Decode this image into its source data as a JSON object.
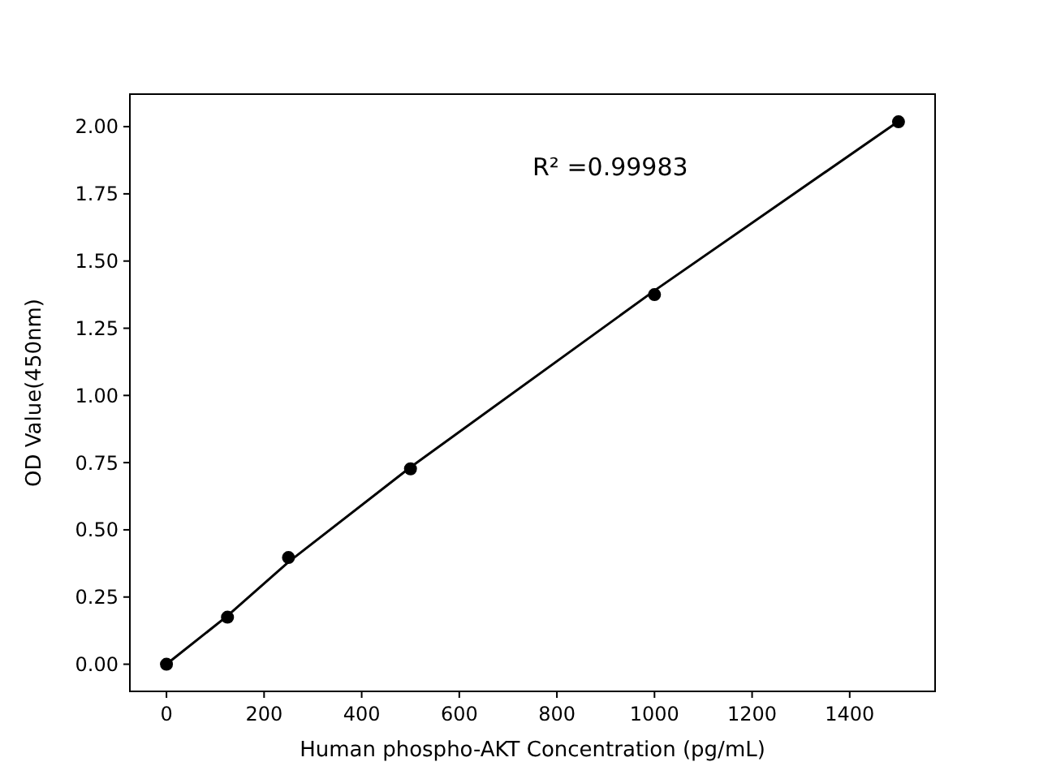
{
  "chart_data": {
    "type": "scatter",
    "xlabel": "Human phospho-AKT Concentration (pg/mL)",
    "ylabel": "OD Value(450nm)",
    "annotations": [
      "R² =0.99983"
    ],
    "xlim": [
      -75,
      1575
    ],
    "ylim": [
      -0.101,
      2.121
    ],
    "xticks": [
      0,
      200,
      400,
      600,
      800,
      1000,
      1200,
      1400
    ],
    "yticks": [
      {
        "value": 0,
        "label": "0.00"
      },
      {
        "value": 0.25,
        "label": "0.25"
      },
      {
        "value": 0.5,
        "label": "0.50"
      },
      {
        "value": 0.75,
        "label": "0.75"
      },
      {
        "value": 1,
        "label": "1.00"
      },
      {
        "value": 1.25,
        "label": "1.25"
      },
      {
        "value": 1.5,
        "label": "1.50"
      },
      {
        "value": 1.75,
        "label": "1.75"
      },
      {
        "value": 2,
        "label": "2.00"
      }
    ],
    "grid": false,
    "marker": "circle",
    "series": [
      {
        "color": "#000000",
        "x": [
          0,
          125,
          250,
          500,
          1000,
          1500
        ],
        "values": [
          0.0,
          0.175,
          0.397,
          0.727,
          1.375,
          2.018
        ]
      },
      {
        "type": "line",
        "color": "#000000",
        "line_style": "solid",
        "marker": "none",
        "x": [
          0,
          125,
          250,
          500,
          1000,
          1500
        ],
        "values": [
          0.0,
          0.18,
          0.38,
          0.733,
          1.39,
          2.02
        ]
      }
    ]
  }
}
